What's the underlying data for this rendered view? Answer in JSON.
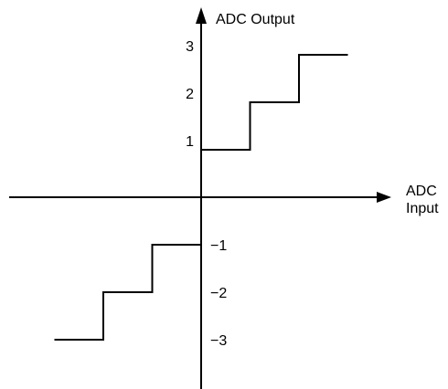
{
  "chart_data": {
    "type": "line",
    "title": "",
    "xlabel_lines": [
      "ADC",
      "Input"
    ],
    "ylabel": "ADC Output",
    "y_ticks": [
      {
        "value": 3,
        "label": "3"
      },
      {
        "value": 2,
        "label": "2"
      },
      {
        "value": 1,
        "label": "1"
      },
      {
        "value": -1,
        "label": "−1"
      },
      {
        "value": -2,
        "label": "−2"
      },
      {
        "value": -3,
        "label": "−3"
      }
    ],
    "ylim": [
      -3.7,
      3.7
    ],
    "xlim": [
      -3,
      3
    ],
    "series": [
      {
        "step_segments": [
          {
            "x": [
              0,
              1
            ],
            "y": 1
          },
          {
            "x": [
              1,
              2
            ],
            "y": 2
          },
          {
            "x": [
              2,
              3
            ],
            "y": 3
          }
        ]
      },
      {
        "step_segments": [
          {
            "x": [
              -1,
              0
            ],
            "y": -1
          },
          {
            "x": [
              -2,
              -1
            ],
            "y": -2
          },
          {
            "x": [
              -3,
              -2
            ],
            "y": -3
          }
        ]
      }
    ],
    "grid": false,
    "line_color": "#000000"
  }
}
